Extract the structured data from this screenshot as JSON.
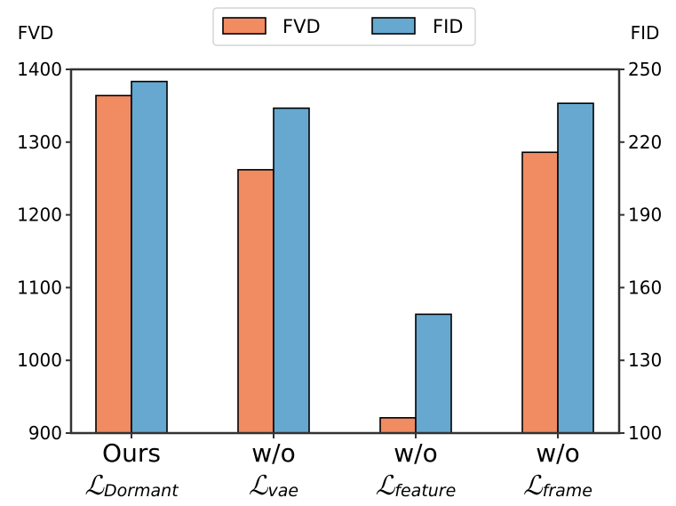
{
  "chart_data": {
    "type": "bar",
    "categories": [
      {
        "main": "Ours",
        "script": "ℒ",
        "sub": "Dormant"
      },
      {
        "main": "w/o",
        "script": "ℒ",
        "sub": "vae"
      },
      {
        "main": "w/o",
        "script": "ℒ",
        "sub": "feature"
      },
      {
        "main": "w/o",
        "script": "ℒ",
        "sub": "frame"
      }
    ],
    "series": [
      {
        "name": "FVD",
        "axis": "left",
        "values": [
          1364,
          1262,
          921,
          1286
        ]
      },
      {
        "name": "FID",
        "axis": "right",
        "values": [
          245,
          234,
          149,
          236
        ]
      }
    ],
    "left_axis": {
      "label": "FVD",
      "ylim": [
        900,
        1400
      ],
      "ticks": [
        900,
        1000,
        1100,
        1200,
        1300,
        1400
      ]
    },
    "right_axis": {
      "label": "FID",
      "ylim": [
        100,
        250
      ],
      "ticks": [
        100,
        130,
        160,
        190,
        220,
        250
      ]
    },
    "legend_position": "top-center",
    "grid": false,
    "colors": {
      "FVD": "#f08b62",
      "FID": "#66a8cf",
      "edge": "#000000",
      "frame": "#333333"
    }
  }
}
